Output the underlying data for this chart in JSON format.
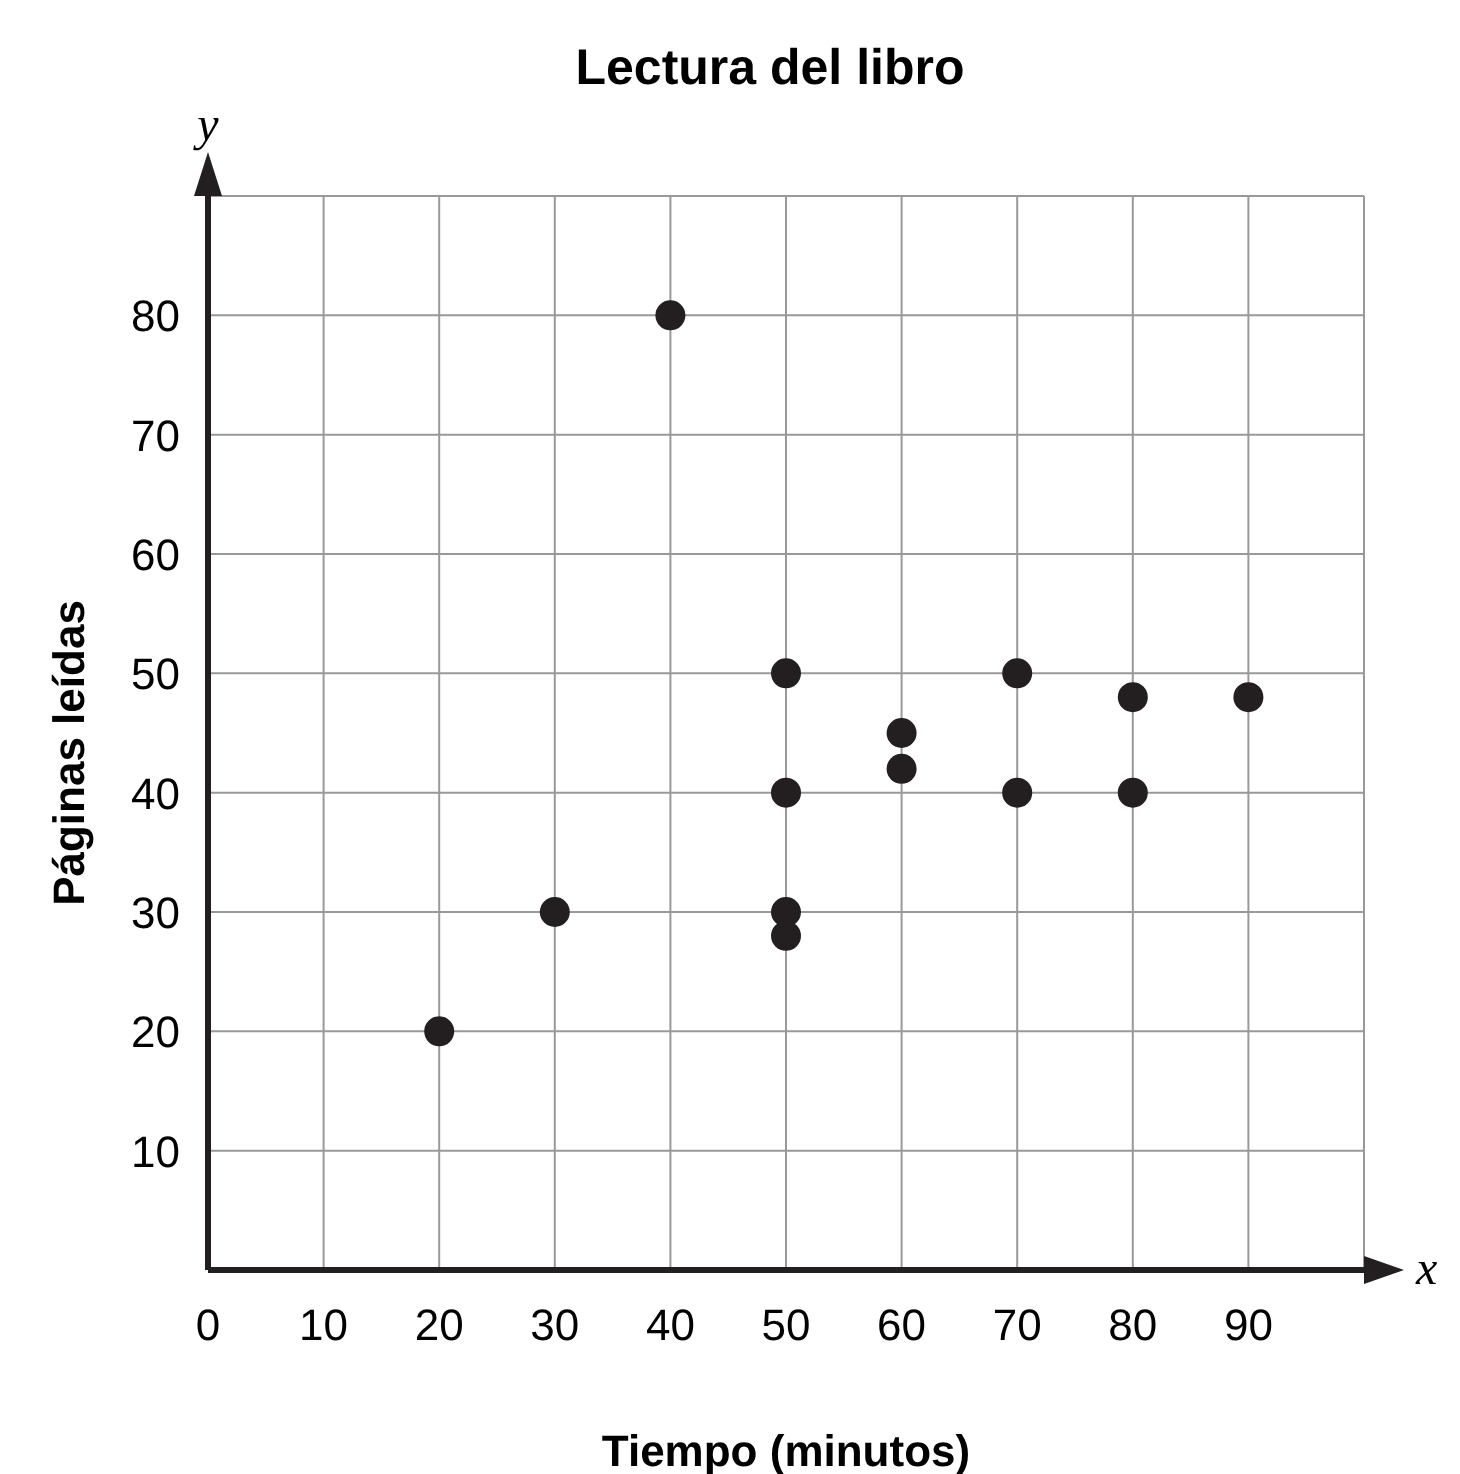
{
  "chart_data": {
    "type": "scatter",
    "title": "Lectura del libro",
    "xlabel": "Tiempo (minutos)",
    "ylabel": "Páginas leídas",
    "x": [
      20,
      30,
      40,
      50,
      50,
      50,
      50,
      60,
      60,
      70,
      70,
      80,
      80,
      90
    ],
    "values": [
      20,
      30,
      80,
      50,
      40,
      30,
      28,
      45,
      42,
      50,
      40,
      48,
      40,
      48
    ],
    "color": "#231f20",
    "marker": "circle",
    "xlim": [
      0,
      100
    ],
    "ylim": [
      0,
      90
    ],
    "xticks": [
      0,
      10,
      20,
      30,
      40,
      50,
      60,
      70,
      80,
      90
    ],
    "yticks": [
      10,
      20,
      30,
      40,
      50,
      60,
      70,
      80
    ],
    "grid": true,
    "annotations": [
      "x",
      "y"
    ]
  }
}
